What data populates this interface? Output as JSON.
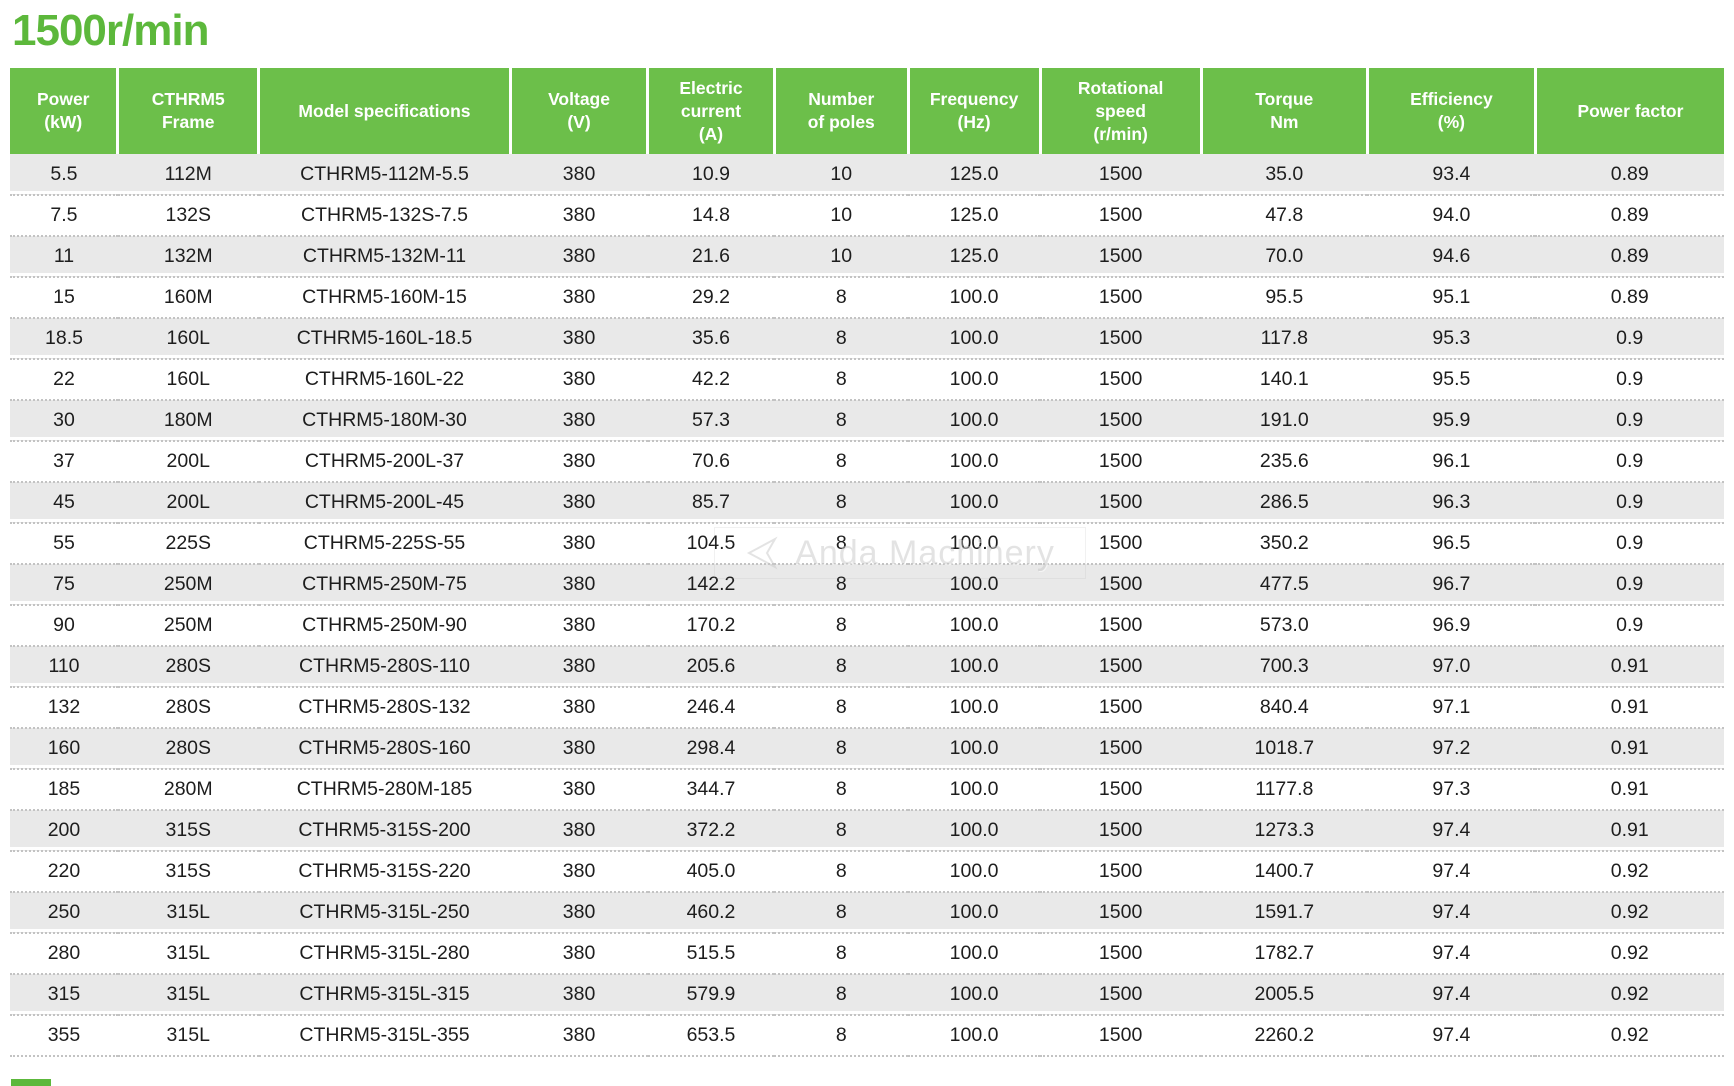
{
  "colors": {
    "title_green": "#5cb83b",
    "header_green": "#6cbf4a",
    "row_alt": "#e9e9e9",
    "header_text": "#ffffff",
    "body_text": "#1d1d1d",
    "watermark_gray": "#c9c9c9"
  },
  "page": {
    "title": "1500r/min",
    "watermark_text": "Anda Machinery"
  },
  "table": {
    "columns": [
      "Power\n(kW)",
      "CTHRM5\nFrame",
      "Model specifications",
      "Voltage\n(V)",
      "Electric\ncurrent\n(A)",
      "Number\nof poles",
      "Frequency\n(Hz)",
      "Rotational\nspeed\n(r/min)",
      "Torque\nNm",
      "Efficiency\n(%)",
      "Power factor"
    ],
    "rows": [
      [
        "5.5",
        "112M",
        "CTHRM5-112M-5.5",
        "380",
        "10.9",
        "10",
        "125.0",
        "1500",
        "35.0",
        "93.4",
        "0.89"
      ],
      [
        "7.5",
        "132S",
        "CTHRM5-132S-7.5",
        "380",
        "14.8",
        "10",
        "125.0",
        "1500",
        "47.8",
        "94.0",
        "0.89"
      ],
      [
        "11",
        "132M",
        "CTHRM5-132M-11",
        "380",
        "21.6",
        "10",
        "125.0",
        "1500",
        "70.0",
        "94.6",
        "0.89"
      ],
      [
        "15",
        "160M",
        "CTHRM5-160M-15",
        "380",
        "29.2",
        "8",
        "100.0",
        "1500",
        "95.5",
        "95.1",
        "0.89"
      ],
      [
        "18.5",
        "160L",
        "CTHRM5-160L-18.5",
        "380",
        "35.6",
        "8",
        "100.0",
        "1500",
        "117.8",
        "95.3",
        "0.9"
      ],
      [
        "22",
        "160L",
        "CTHRM5-160L-22",
        "380",
        "42.2",
        "8",
        "100.0",
        "1500",
        "140.1",
        "95.5",
        "0.9"
      ],
      [
        "30",
        "180M",
        "CTHRM5-180M-30",
        "380",
        "57.3",
        "8",
        "100.0",
        "1500",
        "191.0",
        "95.9",
        "0.9"
      ],
      [
        "37",
        "200L",
        "CTHRM5-200L-37",
        "380",
        "70.6",
        "8",
        "100.0",
        "1500",
        "235.6",
        "96.1",
        "0.9"
      ],
      [
        "45",
        "200L",
        "CTHRM5-200L-45",
        "380",
        "85.7",
        "8",
        "100.0",
        "1500",
        "286.5",
        "96.3",
        "0.9"
      ],
      [
        "55",
        "225S",
        "CTHRM5-225S-55",
        "380",
        "104.5",
        "8",
        "100.0",
        "1500",
        "350.2",
        "96.5",
        "0.9"
      ],
      [
        "75",
        "250M",
        "CTHRM5-250M-75",
        "380",
        "142.2",
        "8",
        "100.0",
        "1500",
        "477.5",
        "96.7",
        "0.9"
      ],
      [
        "90",
        "250M",
        "CTHRM5-250M-90",
        "380",
        "170.2",
        "8",
        "100.0",
        "1500",
        "573.0",
        "96.9",
        "0.9"
      ],
      [
        "110",
        "280S",
        "CTHRM5-280S-110",
        "380",
        "205.6",
        "8",
        "100.0",
        "1500",
        "700.3",
        "97.0",
        "0.91"
      ],
      [
        "132",
        "280S",
        "CTHRM5-280S-132",
        "380",
        "246.4",
        "8",
        "100.0",
        "1500",
        "840.4",
        "97.1",
        "0.91"
      ],
      [
        "160",
        "280S",
        "CTHRM5-280S-160",
        "380",
        "298.4",
        "8",
        "100.0",
        "1500",
        "1018.7",
        "97.2",
        "0.91"
      ],
      [
        "185",
        "280M",
        "CTHRM5-280M-185",
        "380",
        "344.7",
        "8",
        "100.0",
        "1500",
        "1177.8",
        "97.3",
        "0.91"
      ],
      [
        "200",
        "315S",
        "CTHRM5-315S-200",
        "380",
        "372.2",
        "8",
        "100.0",
        "1500",
        "1273.3",
        "97.4",
        "0.91"
      ],
      [
        "220",
        "315S",
        "CTHRM5-315S-220",
        "380",
        "405.0",
        "8",
        "100.0",
        "1500",
        "1400.7",
        "97.4",
        "0.92"
      ],
      [
        "250",
        "315L",
        "CTHRM5-315L-250",
        "380",
        "460.2",
        "8",
        "100.0",
        "1500",
        "1591.7",
        "97.4",
        "0.92"
      ],
      [
        "280",
        "315L",
        "CTHRM5-315L-280",
        "380",
        "515.5",
        "8",
        "100.0",
        "1500",
        "1782.7",
        "97.4",
        "0.92"
      ],
      [
        "315",
        "315L",
        "CTHRM5-315L-315",
        "380",
        "579.9",
        "8",
        "100.0",
        "1500",
        "2005.5",
        "97.4",
        "0.92"
      ],
      [
        "355",
        "315L",
        "CTHRM5-315L-355",
        "380",
        "653.5",
        "8",
        "100.0",
        "1500",
        "2260.2",
        "97.4",
        "0.92"
      ]
    ]
  }
}
